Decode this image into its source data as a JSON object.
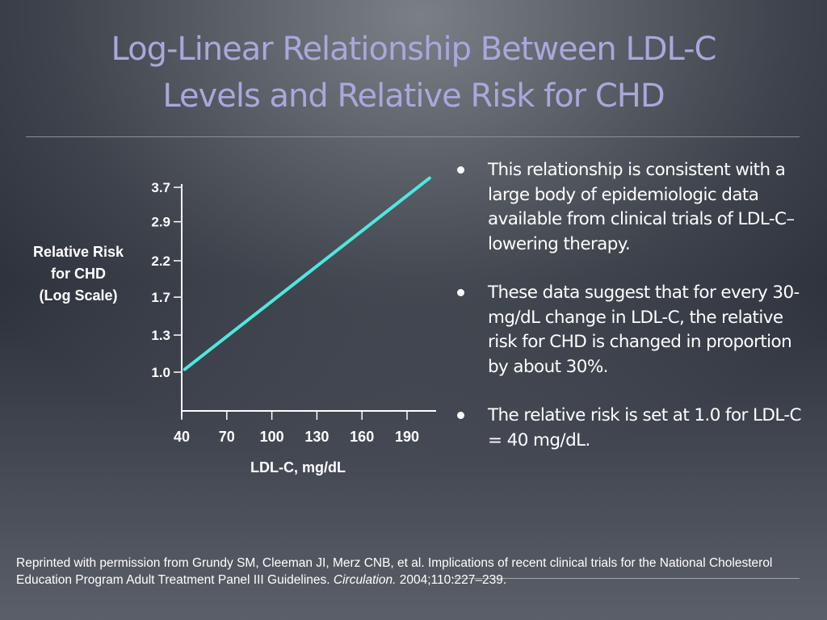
{
  "slide": {
    "title_line1": "Log-Linear Relationship Between LDL-C",
    "title_line2": "Levels and Relative Risk for CHD"
  },
  "chart_data": {
    "type": "line",
    "title": "",
    "xlabel": "LDL-C, mg/dL",
    "ylabel_lines": [
      "Relative Risk",
      "for CHD",
      "(Log Scale)"
    ],
    "x_ticks": [
      40,
      70,
      100,
      130,
      160,
      190
    ],
    "x_tick_labels": [
      "40",
      "70",
      "100",
      "130",
      "160",
      "190"
    ],
    "y_scale": "log",
    "y_ticks": [
      1.0,
      1.3,
      1.7,
      2.2,
      2.9,
      3.7
    ],
    "y_tick_labels": [
      "1.0",
      "1.3",
      "1.7",
      "2.2",
      "2.9",
      "3.7"
    ],
    "xlim": [
      40,
      205
    ],
    "ylim": [
      0.77,
      4.3
    ],
    "grid": false,
    "legend": "none",
    "series": [
      {
        "name": "Relative risk",
        "color": "#4fe8e0",
        "x": [
          42,
          205
        ],
        "y": [
          1.02,
          3.95
        ]
      }
    ]
  },
  "bullets": [
    "This relationship is consistent with a large body of epidemiologic data available from clinical trials of LDL-C–lowering therapy.",
    "These data suggest that for every 30-mg/dL change in LDL-C, the relative risk for CHD is changed in proportion by about 30%.",
    "The relative risk is set at 1.0 for LDL-C = 40 mg/dL."
  ],
  "footer": {
    "text_before": "Reprinted with permission from Grundy SM, Cleeman JI, Merz CNB, et al. Implications of recent clinical trials for the National Cholesterol Education Program Adult Treatment Panel III Guidelines. ",
    "journal": "Circulation.",
    "text_after": " 2004;110:227–239."
  }
}
